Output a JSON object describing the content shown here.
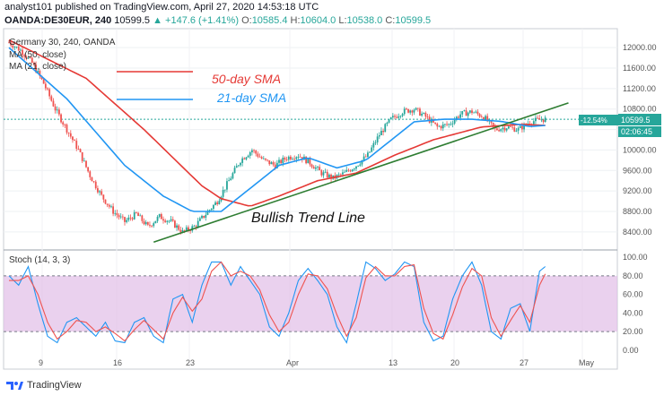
{
  "header": {
    "publisher_line": "analyst101 published on TradingView.com, April 27, 2020 14:53:18 UTC",
    "symbol": "OANDA:DE30EUR, 240",
    "last": "10599.5",
    "change_arrow": "▲",
    "change": "+147.6 (+1.41%)",
    "o_label": "O:",
    "o_value": "10585.4",
    "h_label": "H:",
    "h_value": "10604.0",
    "l_label": "L:",
    "l_value": "10538.0",
    "c_label": "C:",
    "c_value": "10599.5"
  },
  "pane_legend": {
    "title": "Germany 30, 240, OANDA",
    "ma50": "MA (50, close)",
    "ma21": "MA (21, close)"
  },
  "annotations": {
    "sma50": "50-day SMA",
    "sma21": "21-day SMA",
    "trendline": "Bullish Trend Line"
  },
  "price_tags": {
    "pct": "-12.54%",
    "price": "10599.5",
    "countdown": "02:06:45"
  },
  "stoch_label": "Stoch (14, 3, 3)",
  "footer": {
    "brand": "TradingView"
  },
  "colors": {
    "candle_up": "#26a69a",
    "candle_down": "#ef5350",
    "sma50": "#e53935",
    "sma21": "#2196f3",
    "trendline": "#2e7d32",
    "stoch_band": "#e1bee7",
    "stoch_k": "#2196f3",
    "stoch_d": "#ef5350"
  },
  "chart_data": [
    {
      "type": "candlestick",
      "title": "Germany 30, 240, OANDA",
      "x_ticks": [
        "9",
        "16",
        "23",
        "Apr",
        "13",
        "20",
        "27",
        "May"
      ],
      "y_ticks": [
        12000,
        11600,
        11200,
        10800,
        10400,
        10000,
        9600,
        9200,
        8800,
        8400
      ],
      "ylim": [
        8100,
        12300
      ],
      "last_price": 10599.5,
      "anchors": [
        [
          0,
          12100
        ],
        [
          6,
          11950
        ],
        [
          12,
          11700
        ],
        [
          18,
          11300
        ],
        [
          24,
          10800
        ],
        [
          30,
          10400
        ],
        [
          36,
          10000
        ],
        [
          42,
          9500
        ],
        [
          48,
          9100
        ],
        [
          54,
          8800
        ],
        [
          60,
          8600
        ],
        [
          66,
          8750
        ],
        [
          72,
          8500
        ],
        [
          78,
          8700
        ],
        [
          84,
          8600
        ],
        [
          90,
          8400
        ],
        [
          96,
          8500
        ],
        [
          102,
          8750
        ],
        [
          108,
          9000
        ],
        [
          114,
          9400
        ],
        [
          120,
          9800
        ],
        [
          126,
          10000
        ],
        [
          132,
          9800
        ],
        [
          138,
          9700
        ],
        [
          144,
          9850
        ],
        [
          150,
          9900
        ],
        [
          156,
          9750
        ],
        [
          162,
          9550
        ],
        [
          168,
          9450
        ],
        [
          174,
          9550
        ],
        [
          180,
          9700
        ],
        [
          186,
          9900
        ],
        [
          192,
          10300
        ],
        [
          198,
          10600
        ],
        [
          204,
          10750
        ],
        [
          210,
          10800
        ],
        [
          216,
          10650
        ],
        [
          222,
          10450
        ],
        [
          228,
          10500
        ],
        [
          234,
          10700
        ],
        [
          240,
          10750
        ],
        [
          246,
          10650
        ],
        [
          252,
          10400
        ],
        [
          258,
          10450
        ],
        [
          264,
          10400
        ],
        [
          270,
          10550
        ],
        [
          276,
          10600
        ]
      ],
      "series": [
        {
          "name": "MA (50, close)",
          "values": [
            [
              0,
              12150
            ],
            [
              40,
              11400
            ],
            [
              70,
              10400
            ],
            [
              100,
              9300
            ],
            [
              110,
              9050
            ],
            [
              125,
              8900
            ],
            [
              140,
              9100
            ],
            [
              160,
              9400
            ],
            [
              180,
              9550
            ],
            [
              200,
              9900
            ],
            [
              220,
              10200
            ],
            [
              245,
              10450
            ],
            [
              265,
              10500
            ],
            [
              278,
              10480
            ]
          ]
        },
        {
          "name": "MA (21, close)",
          "values": [
            [
              0,
              12000
            ],
            [
              30,
              11000
            ],
            [
              60,
              9700
            ],
            [
              80,
              9100
            ],
            [
              95,
              8800
            ],
            [
              110,
              8800
            ],
            [
              125,
              9250
            ],
            [
              140,
              9700
            ],
            [
              155,
              9850
            ],
            [
              170,
              9650
            ],
            [
              185,
              9800
            ],
            [
              195,
              10100
            ],
            [
              210,
              10550
            ],
            [
              225,
              10600
            ],
            [
              240,
              10600
            ],
            [
              255,
              10560
            ],
            [
              270,
              10460
            ],
            [
              278,
              10480
            ]
          ]
        }
      ],
      "trendline": [
        [
          75,
          8200
        ],
        [
          290,
          10920
        ]
      ]
    },
    {
      "type": "line",
      "title": "Stoch (14, 3, 3)",
      "y_ticks": [
        100,
        80,
        60,
        40,
        20,
        0
      ],
      "ylim": [
        -5,
        105
      ],
      "overbought": 80,
      "oversold": 20,
      "k_anchors": [
        [
          0,
          80
        ],
        [
          5,
          70
        ],
        [
          10,
          90
        ],
        [
          15,
          50
        ],
        [
          20,
          15
        ],
        [
          25,
          8
        ],
        [
          30,
          30
        ],
        [
          35,
          35
        ],
        [
          40,
          25
        ],
        [
          45,
          15
        ],
        [
          50,
          30
        ],
        [
          55,
          10
        ],
        [
          60,
          8
        ],
        [
          65,
          30
        ],
        [
          70,
          35
        ],
        [
          75,
          15
        ],
        [
          80,
          8
        ],
        [
          85,
          55
        ],
        [
          90,
          60
        ],
        [
          95,
          30
        ],
        [
          100,
          70
        ],
        [
          105,
          95
        ],
        [
          110,
          95
        ],
        [
          115,
          70
        ],
        [
          120,
          90
        ],
        [
          125,
          75
        ],
        [
          130,
          60
        ],
        [
          135,
          25
        ],
        [
          140,
          15
        ],
        [
          145,
          40
        ],
        [
          150,
          75
        ],
        [
          155,
          88
        ],
        [
          160,
          75
        ],
        [
          165,
          60
        ],
        [
          170,
          25
        ],
        [
          175,
          8
        ],
        [
          180,
          50
        ],
        [
          185,
          95
        ],
        [
          190,
          88
        ],
        [
          195,
          75
        ],
        [
          200,
          82
        ],
        [
          205,
          95
        ],
        [
          210,
          90
        ],
        [
          215,
          30
        ],
        [
          220,
          10
        ],
        [
          225,
          15
        ],
        [
          230,
          55
        ],
        [
          235,
          80
        ],
        [
          240,
          95
        ],
        [
          245,
          70
        ],
        [
          250,
          20
        ],
        [
          255,
          12
        ],
        [
          260,
          45
        ],
        [
          265,
          50
        ],
        [
          270,
          20
        ],
        [
          275,
          85
        ],
        [
          278,
          90
        ]
      ],
      "d_anchors": [
        [
          0,
          75
        ],
        [
          5,
          75
        ],
        [
          10,
          80
        ],
        [
          15,
          60
        ],
        [
          20,
          30
        ],
        [
          25,
          12
        ],
        [
          30,
          20
        ],
        [
          35,
          32
        ],
        [
          40,
          30
        ],
        [
          45,
          20
        ],
        [
          50,
          25
        ],
        [
          55,
          18
        ],
        [
          60,
          10
        ],
        [
          65,
          22
        ],
        [
          70,
          32
        ],
        [
          75,
          22
        ],
        [
          80,
          12
        ],
        [
          85,
          40
        ],
        [
          90,
          57
        ],
        [
          95,
          42
        ],
        [
          100,
          55
        ],
        [
          105,
          85
        ],
        [
          110,
          95
        ],
        [
          115,
          80
        ],
        [
          120,
          85
        ],
        [
          125,
          80
        ],
        [
          130,
          65
        ],
        [
          135,
          38
        ],
        [
          140,
          20
        ],
        [
          145,
          30
        ],
        [
          150,
          60
        ],
        [
          155,
          82
        ],
        [
          160,
          80
        ],
        [
          165,
          66
        ],
        [
          170,
          38
        ],
        [
          175,
          15
        ],
        [
          180,
          35
        ],
        [
          185,
          78
        ],
        [
          190,
          90
        ],
        [
          195,
          80
        ],
        [
          200,
          80
        ],
        [
          205,
          90
        ],
        [
          210,
          92
        ],
        [
          215,
          45
        ],
        [
          220,
          18
        ],
        [
          225,
          12
        ],
        [
          230,
          38
        ],
        [
          235,
          68
        ],
        [
          240,
          88
        ],
        [
          245,
          80
        ],
        [
          250,
          35
        ],
        [
          255,
          15
        ],
        [
          260,
          32
        ],
        [
          265,
          48
        ],
        [
          270,
          30
        ],
        [
          275,
          70
        ],
        [
          278,
          82
        ]
      ]
    }
  ]
}
